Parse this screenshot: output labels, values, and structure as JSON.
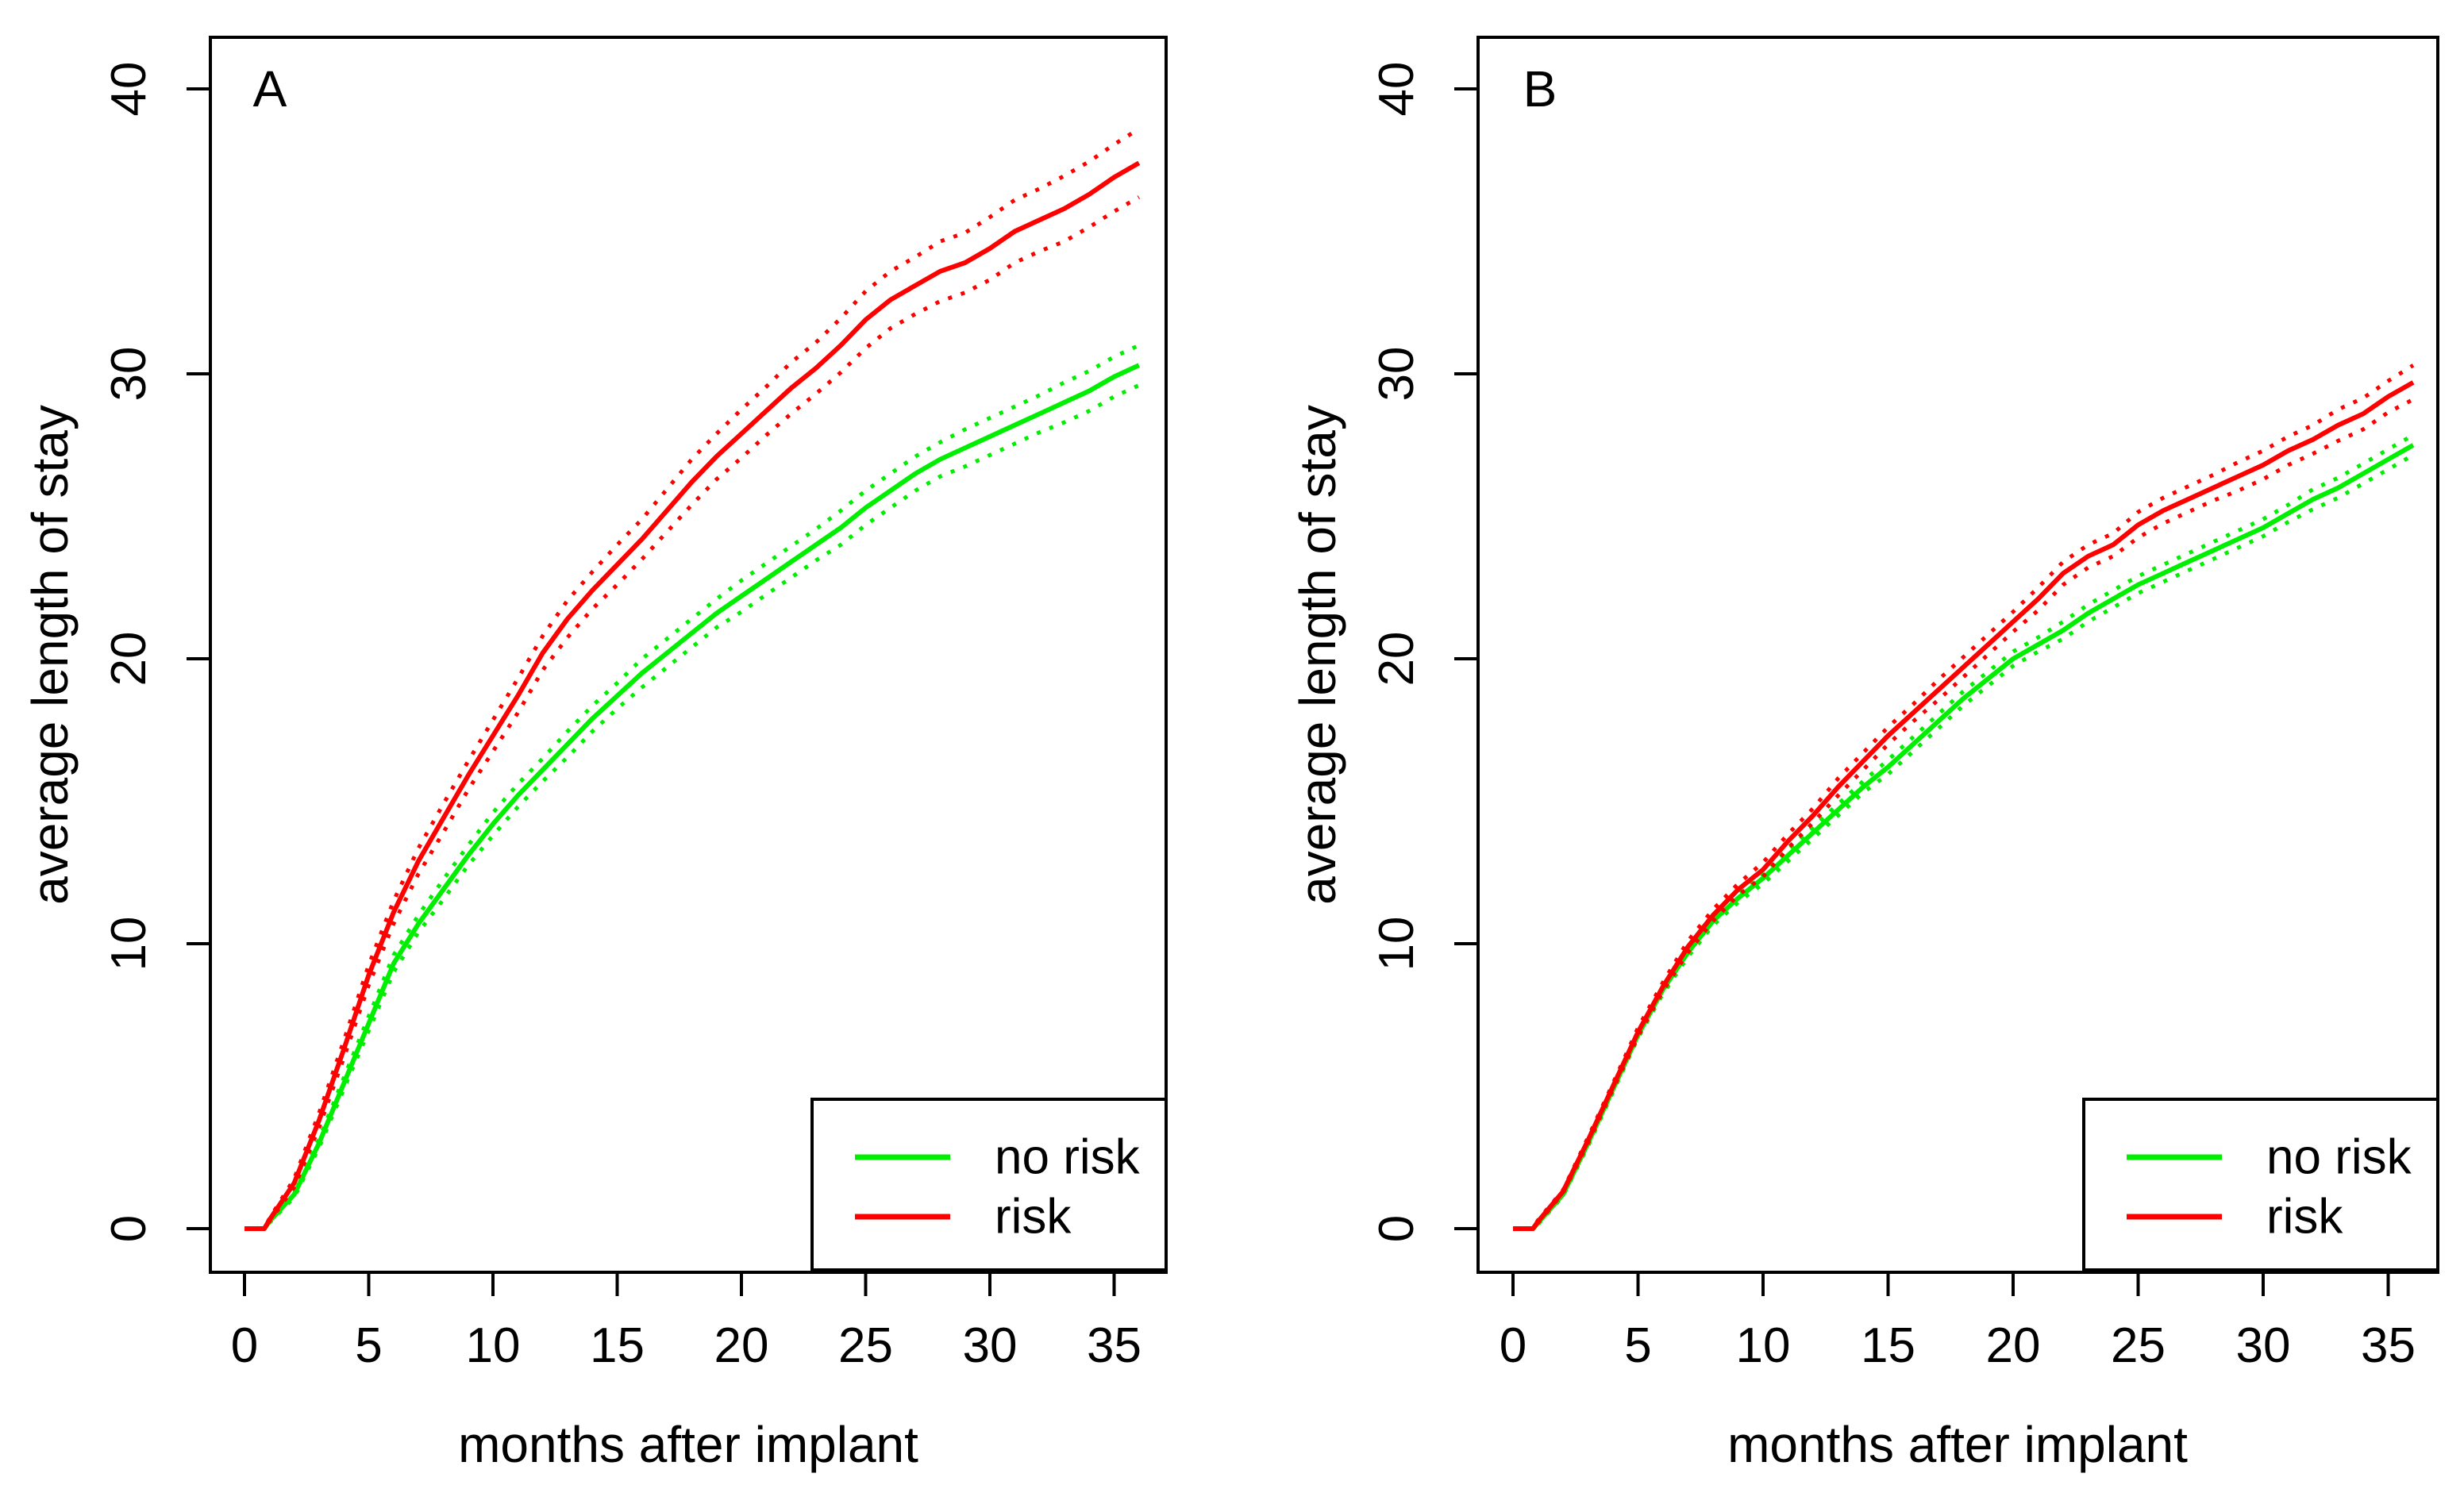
{
  "figure": {
    "background": "#ffffff"
  },
  "chart_data": [
    {
      "type": "line",
      "panel_label": "A",
      "xlabel": "months after implant",
      "ylabel": "average length of stay",
      "xlim": [
        0,
        36
      ],
      "ylim": [
        0,
        40
      ],
      "x_ticks": [
        0,
        5,
        10,
        15,
        20,
        25,
        30,
        35
      ],
      "y_ticks": [
        0,
        10,
        20,
        30,
        40
      ],
      "grid": "off",
      "ci_style": "dotted",
      "legend": {
        "position": "bottom-right",
        "entries": [
          {
            "label": "no risk",
            "color": "#00EE00"
          },
          {
            "label": "risk",
            "color": "#FF0000"
          }
        ]
      },
      "x": [
        0,
        0.8,
        1,
        2,
        3,
        4,
        5,
        6,
        7,
        8,
        9,
        10,
        11,
        12,
        13,
        14,
        15,
        16,
        17,
        18,
        19,
        20,
        21,
        22,
        23,
        24,
        25,
        26,
        27,
        28,
        29,
        30,
        31,
        32,
        33,
        34,
        35,
        36
      ],
      "series": [
        {
          "name": "no risk",
          "color": "#00EE00",
          "mean": [
            0,
            0,
            0.25,
            1.2,
            3.0,
            5.1,
            7.2,
            9.3,
            10.7,
            11.9,
            13.1,
            14.2,
            15.2,
            16.1,
            17.0,
            17.9,
            18.7,
            19.5,
            20.2,
            20.9,
            21.6,
            22.2,
            22.8,
            23.4,
            24.0,
            24.6,
            25.3,
            25.9,
            26.5,
            27.0,
            27.4,
            27.8,
            28.2,
            28.6,
            29.0,
            29.4,
            29.9,
            30.3
          ],
          "ci_upper": [
            0,
            0,
            0.3,
            1.3,
            3.15,
            5.3,
            7.45,
            9.6,
            11.0,
            12.25,
            13.45,
            14.6,
            15.6,
            16.5,
            17.45,
            18.35,
            19.15,
            20.0,
            20.7,
            21.4,
            22.1,
            22.75,
            23.35,
            23.95,
            24.55,
            25.2,
            25.9,
            26.5,
            27.1,
            27.6,
            28.05,
            28.45,
            28.85,
            29.25,
            29.7,
            30.1,
            30.6,
            31.0
          ],
          "ci_lower": [
            0,
            0,
            0.2,
            1.1,
            2.85,
            4.9,
            6.95,
            9.0,
            10.4,
            11.55,
            12.75,
            13.8,
            14.8,
            15.7,
            16.55,
            17.45,
            18.25,
            19.0,
            19.7,
            20.4,
            21.1,
            21.65,
            22.25,
            22.85,
            23.45,
            24.0,
            24.7,
            25.3,
            25.9,
            26.4,
            26.75,
            27.15,
            27.55,
            27.95,
            28.3,
            28.7,
            29.2,
            29.6
          ]
        },
        {
          "name": "risk",
          "color": "#FF0000",
          "mean": [
            0,
            0,
            0.3,
            1.6,
            3.8,
            6.3,
            8.9,
            11.1,
            12.9,
            14.4,
            15.9,
            17.3,
            18.7,
            20.2,
            21.4,
            22.4,
            23.3,
            24.2,
            25.2,
            26.2,
            27.1,
            27.9,
            28.7,
            29.5,
            30.2,
            31.0,
            31.9,
            32.6,
            33.1,
            33.6,
            33.9,
            34.4,
            35.0,
            35.4,
            35.8,
            36.3,
            36.9,
            37.4
          ],
          "ci_upper": [
            0,
            0,
            0.35,
            1.75,
            4.05,
            6.6,
            9.25,
            11.5,
            13.35,
            14.9,
            16.4,
            17.85,
            19.3,
            20.8,
            22.05,
            23.05,
            24.0,
            24.9,
            25.95,
            27.0,
            27.9,
            28.75,
            29.55,
            30.4,
            31.1,
            31.95,
            32.9,
            33.6,
            34.1,
            34.65,
            34.95,
            35.5,
            36.1,
            36.5,
            36.95,
            37.45,
            38.05,
            38.6
          ],
          "ci_lower": [
            0,
            0,
            0.25,
            1.45,
            3.55,
            6.0,
            8.55,
            10.7,
            12.45,
            13.9,
            15.4,
            16.75,
            18.1,
            19.6,
            20.75,
            21.75,
            22.6,
            23.5,
            24.45,
            25.4,
            26.3,
            27.05,
            27.85,
            28.6,
            29.3,
            30.05,
            30.9,
            31.6,
            32.1,
            32.55,
            32.85,
            33.3,
            33.9,
            34.3,
            34.65,
            35.15,
            35.7,
            36.2
          ]
        }
      ]
    },
    {
      "type": "line",
      "panel_label": "B",
      "xlabel": "months after implant",
      "ylabel": "average length of stay",
      "xlim": [
        0,
        36
      ],
      "ylim": [
        0,
        40
      ],
      "x_ticks": [
        0,
        5,
        10,
        15,
        20,
        25,
        30,
        35
      ],
      "y_ticks": [
        0,
        10,
        20,
        30,
        40
      ],
      "grid": "off",
      "ci_style": "dotted",
      "legend": {
        "position": "bottom-right",
        "entries": [
          {
            "label": "no risk",
            "color": "#00EE00"
          },
          {
            "label": "risk",
            "color": "#FF0000"
          }
        ]
      },
      "x": [
        0,
        0.8,
        1,
        2,
        3,
        4,
        5,
        6,
        7,
        8,
        9,
        10,
        11,
        12,
        13,
        14,
        15,
        16,
        17,
        18,
        19,
        20,
        21,
        22,
        23,
        24,
        25,
        26,
        27,
        28,
        29,
        30,
        31,
        32,
        33,
        34,
        35,
        36
      ],
      "series": [
        {
          "name": "no risk",
          "color": "#00EE00",
          "mean": [
            0,
            0,
            0.2,
            1.2,
            3.0,
            4.9,
            6.8,
            8.4,
            9.7,
            10.8,
            11.6,
            12.3,
            13.1,
            13.9,
            14.7,
            15.5,
            16.2,
            17.0,
            17.8,
            18.6,
            19.3,
            20.0,
            20.5,
            21.0,
            21.6,
            22.1,
            22.6,
            23.0,
            23.4,
            23.8,
            24.2,
            24.6,
            25.1,
            25.6,
            26.0,
            26.5,
            27.0,
            27.5
          ],
          "ci_upper": [
            0,
            0,
            0.25,
            1.25,
            3.1,
            5.0,
            6.9,
            8.55,
            9.85,
            10.95,
            11.75,
            12.5,
            13.3,
            14.1,
            14.9,
            15.7,
            16.45,
            17.25,
            18.05,
            18.85,
            19.55,
            20.25,
            20.75,
            21.3,
            21.9,
            22.4,
            22.9,
            23.3,
            23.7,
            24.1,
            24.5,
            24.9,
            25.4,
            25.95,
            26.35,
            26.85,
            27.35,
            27.85
          ],
          "ci_lower": [
            0,
            0,
            0.15,
            1.15,
            2.9,
            4.8,
            6.7,
            8.25,
            9.55,
            10.65,
            11.45,
            12.1,
            12.9,
            13.7,
            14.5,
            15.3,
            15.95,
            16.75,
            17.55,
            18.35,
            19.05,
            19.75,
            20.25,
            20.7,
            21.3,
            21.8,
            22.3,
            22.7,
            23.1,
            23.5,
            23.9,
            24.3,
            24.8,
            25.25,
            25.65,
            26.15,
            26.65,
            27.15
          ]
        },
        {
          "name": "risk",
          "color": "#FF0000",
          "mean": [
            0,
            0,
            0.25,
            1.3,
            3.1,
            5.0,
            6.9,
            8.5,
            9.9,
            11.0,
            11.9,
            12.6,
            13.6,
            14.5,
            15.5,
            16.4,
            17.3,
            18.1,
            18.9,
            19.7,
            20.5,
            21.3,
            22.1,
            23.0,
            23.6,
            24.0,
            24.7,
            25.2,
            25.6,
            26.0,
            26.4,
            26.8,
            27.3,
            27.7,
            28.2,
            28.6,
            29.2,
            29.7
          ],
          "ci_upper": [
            0,
            0,
            0.3,
            1.35,
            3.2,
            5.1,
            7.05,
            8.65,
            10.1,
            11.2,
            12.1,
            12.85,
            13.85,
            14.75,
            15.8,
            16.7,
            17.6,
            18.4,
            19.25,
            20.05,
            20.85,
            21.65,
            22.5,
            23.4,
            24.0,
            24.4,
            25.15,
            25.65,
            26.05,
            26.45,
            26.9,
            27.3,
            27.8,
            28.2,
            28.75,
            29.15,
            29.75,
            30.3
          ],
          "ci_lower": [
            0,
            0,
            0.2,
            1.25,
            3.0,
            4.9,
            6.75,
            8.35,
            9.7,
            10.8,
            11.7,
            12.35,
            13.35,
            14.25,
            15.2,
            16.1,
            17.0,
            17.8,
            18.55,
            19.35,
            20.15,
            20.95,
            21.7,
            22.6,
            23.2,
            23.6,
            24.25,
            24.75,
            25.15,
            25.55,
            25.9,
            26.3,
            26.8,
            27.2,
            27.65,
            28.05,
            28.65,
            29.1
          ]
        }
      ]
    }
  ]
}
